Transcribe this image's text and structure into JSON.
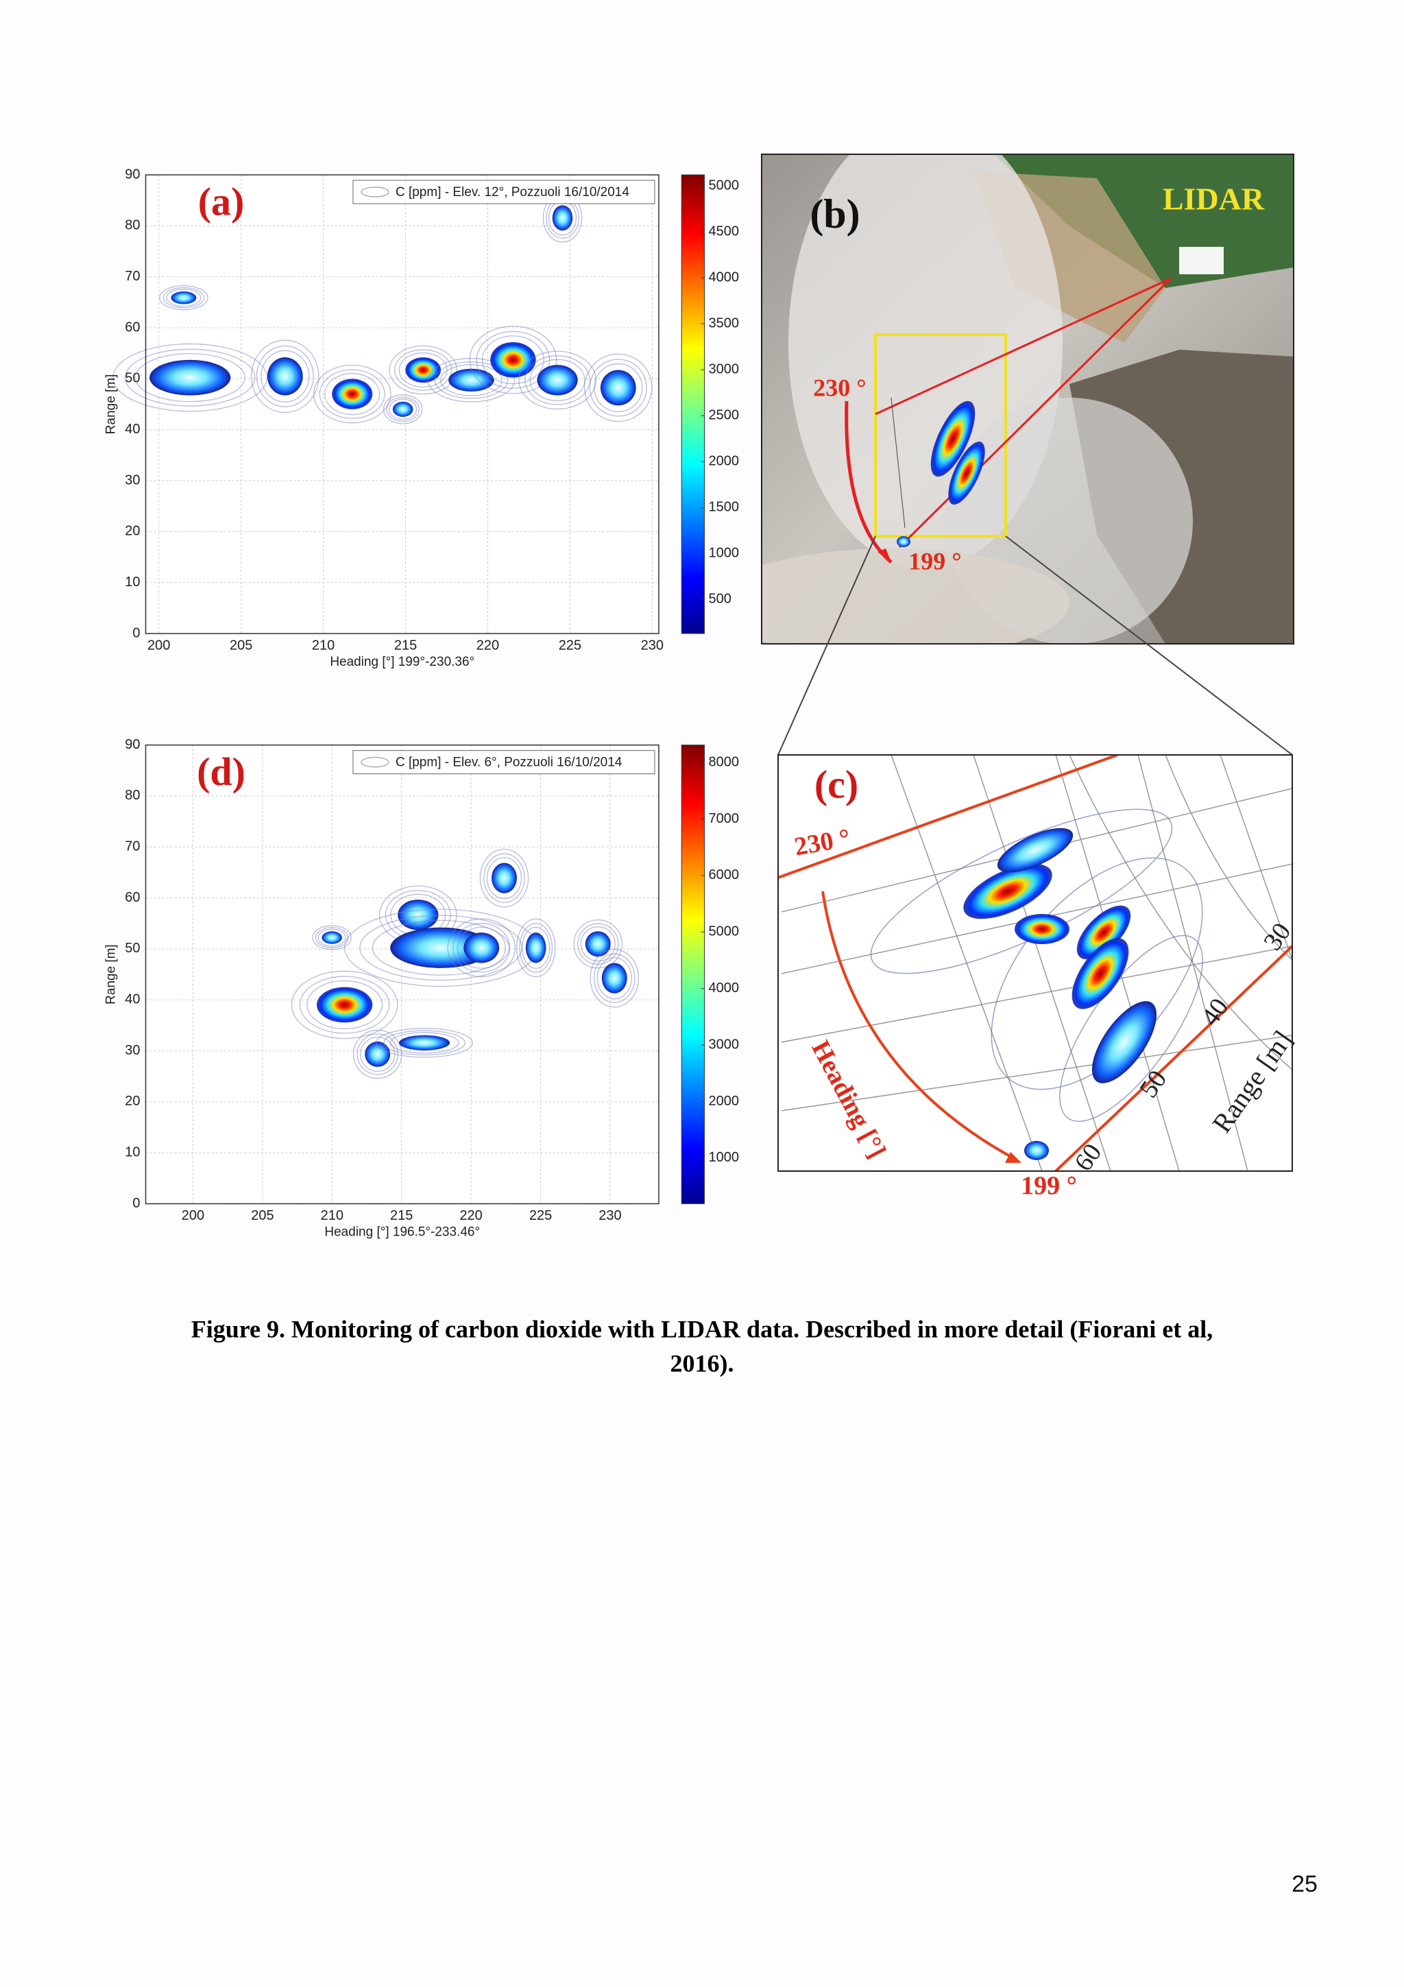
{
  "figure": {
    "panel_a": {
      "label": "(a)",
      "legend": "C [ppm] - Elev. 12°, Pozzuoli 16/10/2014",
      "xlabel": "Heading [°] 199°-230.36°",
      "ylabel": "Range [m]",
      "xlim": [
        199.2,
        230.4
      ],
      "xticks": [
        200,
        205,
        210,
        215,
        220,
        225,
        230
      ],
      "ylim": [
        0,
        90
      ],
      "yticks": [
        0,
        10,
        20,
        30,
        40,
        50,
        60,
        70,
        80,
        90
      ],
      "colorbar": {
        "lim": [
          130,
          5120
        ],
        "ticks": [
          500,
          1000,
          1500,
          2000,
          2500,
          3000,
          3500,
          4000,
          4500,
          5000
        ]
      }
    },
    "panel_b": {
      "label": "(b)",
      "lidar": "LIDAR",
      "start": "230 °",
      "end": "199 °"
    },
    "panel_c": {
      "label": "(c)",
      "start": "230 °",
      "end": "199 °",
      "heading": "Heading [°]",
      "range": "Range [m]",
      "range_ticks": [
        "30",
        "40",
        "50",
        "60"
      ]
    },
    "panel_d": {
      "label": "(d)",
      "legend": "C [ppm] - Elev. 6°, Pozzuoli 16/10/2014",
      "xlabel": "Heading [°] 196.5°-233.46°",
      "ylabel": "Range [m]",
      "xlim": [
        196.6,
        233.5
      ],
      "xticks": [
        200,
        205,
        210,
        215,
        220,
        225,
        230
      ],
      "ylim": [
        0,
        90
      ],
      "yticks": [
        0,
        10,
        20,
        30,
        40,
        50,
        60,
        70,
        80,
        90
      ],
      "colorbar": {
        "lim": [
          190,
          8310
        ],
        "ticks": [
          1000,
          2000,
          3000,
          4000,
          5000,
          6000,
          7000,
          8000
        ]
      }
    },
    "caption": [
      "Figure 9. Monitoring of carbon dioxide with LIDAR data. Described in more detail (Fiorani et al,",
      "2016)."
    ],
    "page_number": "25"
  }
}
